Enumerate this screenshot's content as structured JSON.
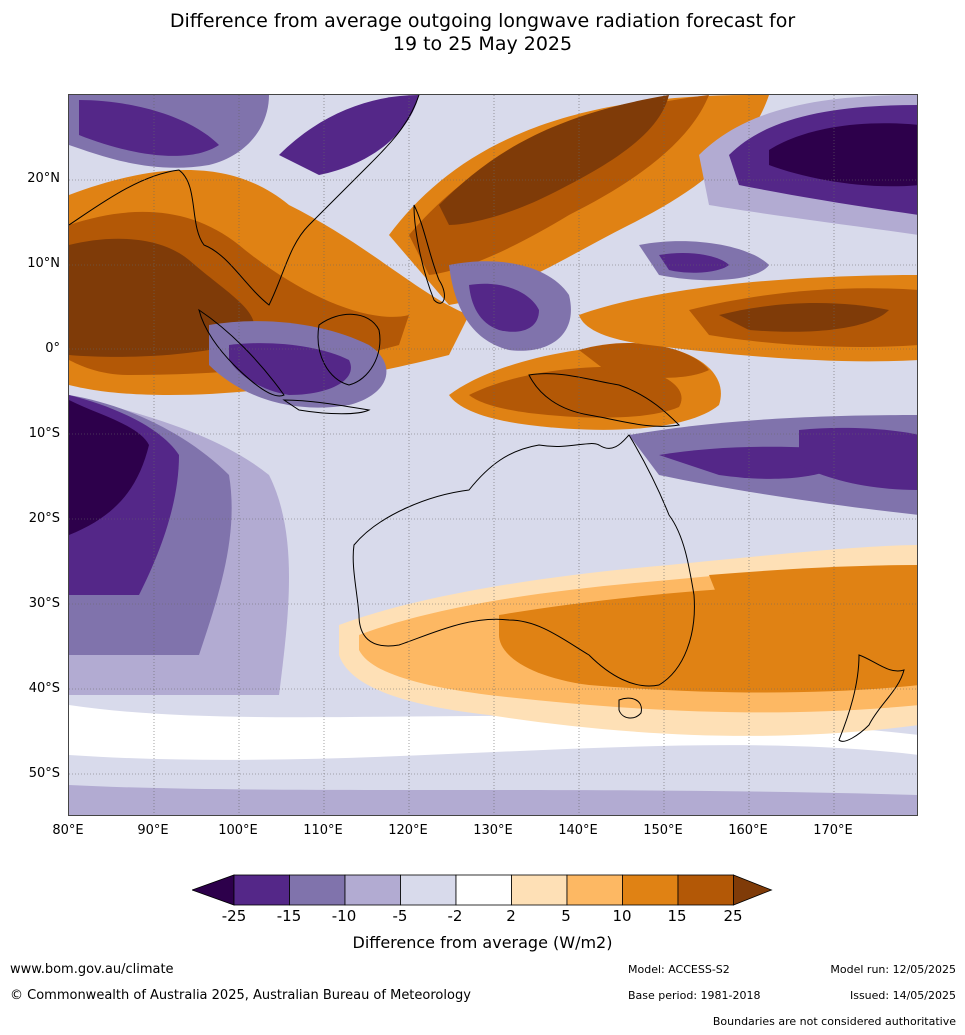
{
  "title_line1": "Difference from average outgoing longwave radiation forecast for",
  "title_line2": "19 to 25 May 2025",
  "lat_labels": [
    "20°N",
    "10°N",
    "0°",
    "10°S",
    "20°S",
    "30°S",
    "40°S",
    "50°S"
  ],
  "lon_labels": [
    "80°E",
    "90°E",
    "100°E",
    "110°E",
    "120°E",
    "130°E",
    "140°E",
    "150°E",
    "160°E",
    "170°E"
  ],
  "colorbar": {
    "ticks": [
      "-25",
      "-15",
      "-10",
      "-5",
      "-2",
      "2",
      "5",
      "10",
      "15",
      "25"
    ],
    "colors": [
      "#2d004b",
      "#542788",
      "#8073ac",
      "#b2abd2",
      "#d8daeb",
      "#ffffff",
      "#fee0b6",
      "#fdb863",
      "#e08214",
      "#b35806",
      "#7f3b08"
    ],
    "label": "Difference from average (W/m2)"
  },
  "footer": {
    "website": "www.bom.gov.au/climate",
    "copyright": "© Commonwealth of Australia 2025, Australian Bureau of Meteorology",
    "model": "Model: ACCESS-S2",
    "base_period": "Base period: 1981-2018",
    "model_run": "Model run: 12/05/2025",
    "issued": "Issued: 14/05/2025",
    "disclaimer": "Boundaries are not considered authoritative"
  }
}
